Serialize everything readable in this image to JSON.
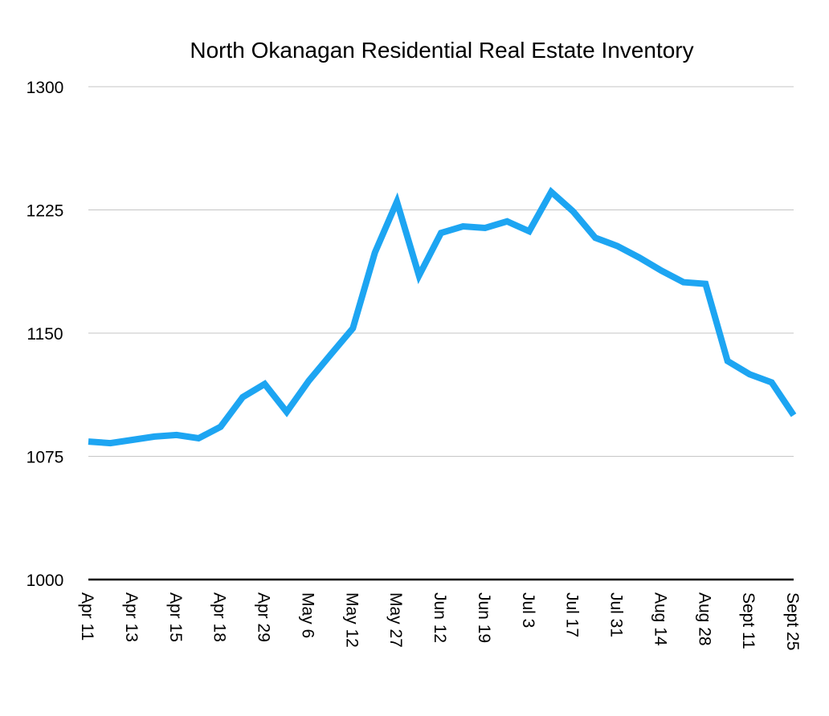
{
  "chart_data": {
    "type": "line",
    "title": "North Okanagan Residential Real Estate Inventory",
    "xlabel": "",
    "ylabel": "",
    "ylim": [
      1000,
      1300
    ],
    "y_ticks": [
      1000,
      1075,
      1150,
      1225,
      1300
    ],
    "grid": true,
    "legend": "none",
    "line_color": "#1da5f2",
    "x_tick_labels": [
      "Apr 11",
      "Apr 13",
      "Apr 15",
      "Apr 18",
      "Apr 29",
      "May 6",
      "May 12",
      "May 27",
      "Jun 12",
      "Jun 19",
      "Jul 3",
      "Jul 17",
      "Jul 31",
      "Aug 14",
      "Aug 28",
      "Sept 11",
      "Sept 25"
    ],
    "x_tick_positions": [
      0,
      2,
      4,
      6,
      8,
      10,
      12,
      14,
      16,
      18,
      20,
      22,
      24,
      26,
      28,
      30,
      32
    ],
    "series": [
      {
        "values": [
          1084,
          1083,
          1085,
          1087,
          1088,
          1086,
          1093,
          1111,
          1119,
          1102,
          1121,
          1137,
          1153,
          1199,
          1230,
          1185,
          1211,
          1215,
          1214,
          1218,
          1212,
          1236,
          1224,
          1208,
          1203,
          1196,
          1188,
          1181,
          1180,
          1133,
          1125,
          1120,
          1100
        ]
      }
    ]
  }
}
